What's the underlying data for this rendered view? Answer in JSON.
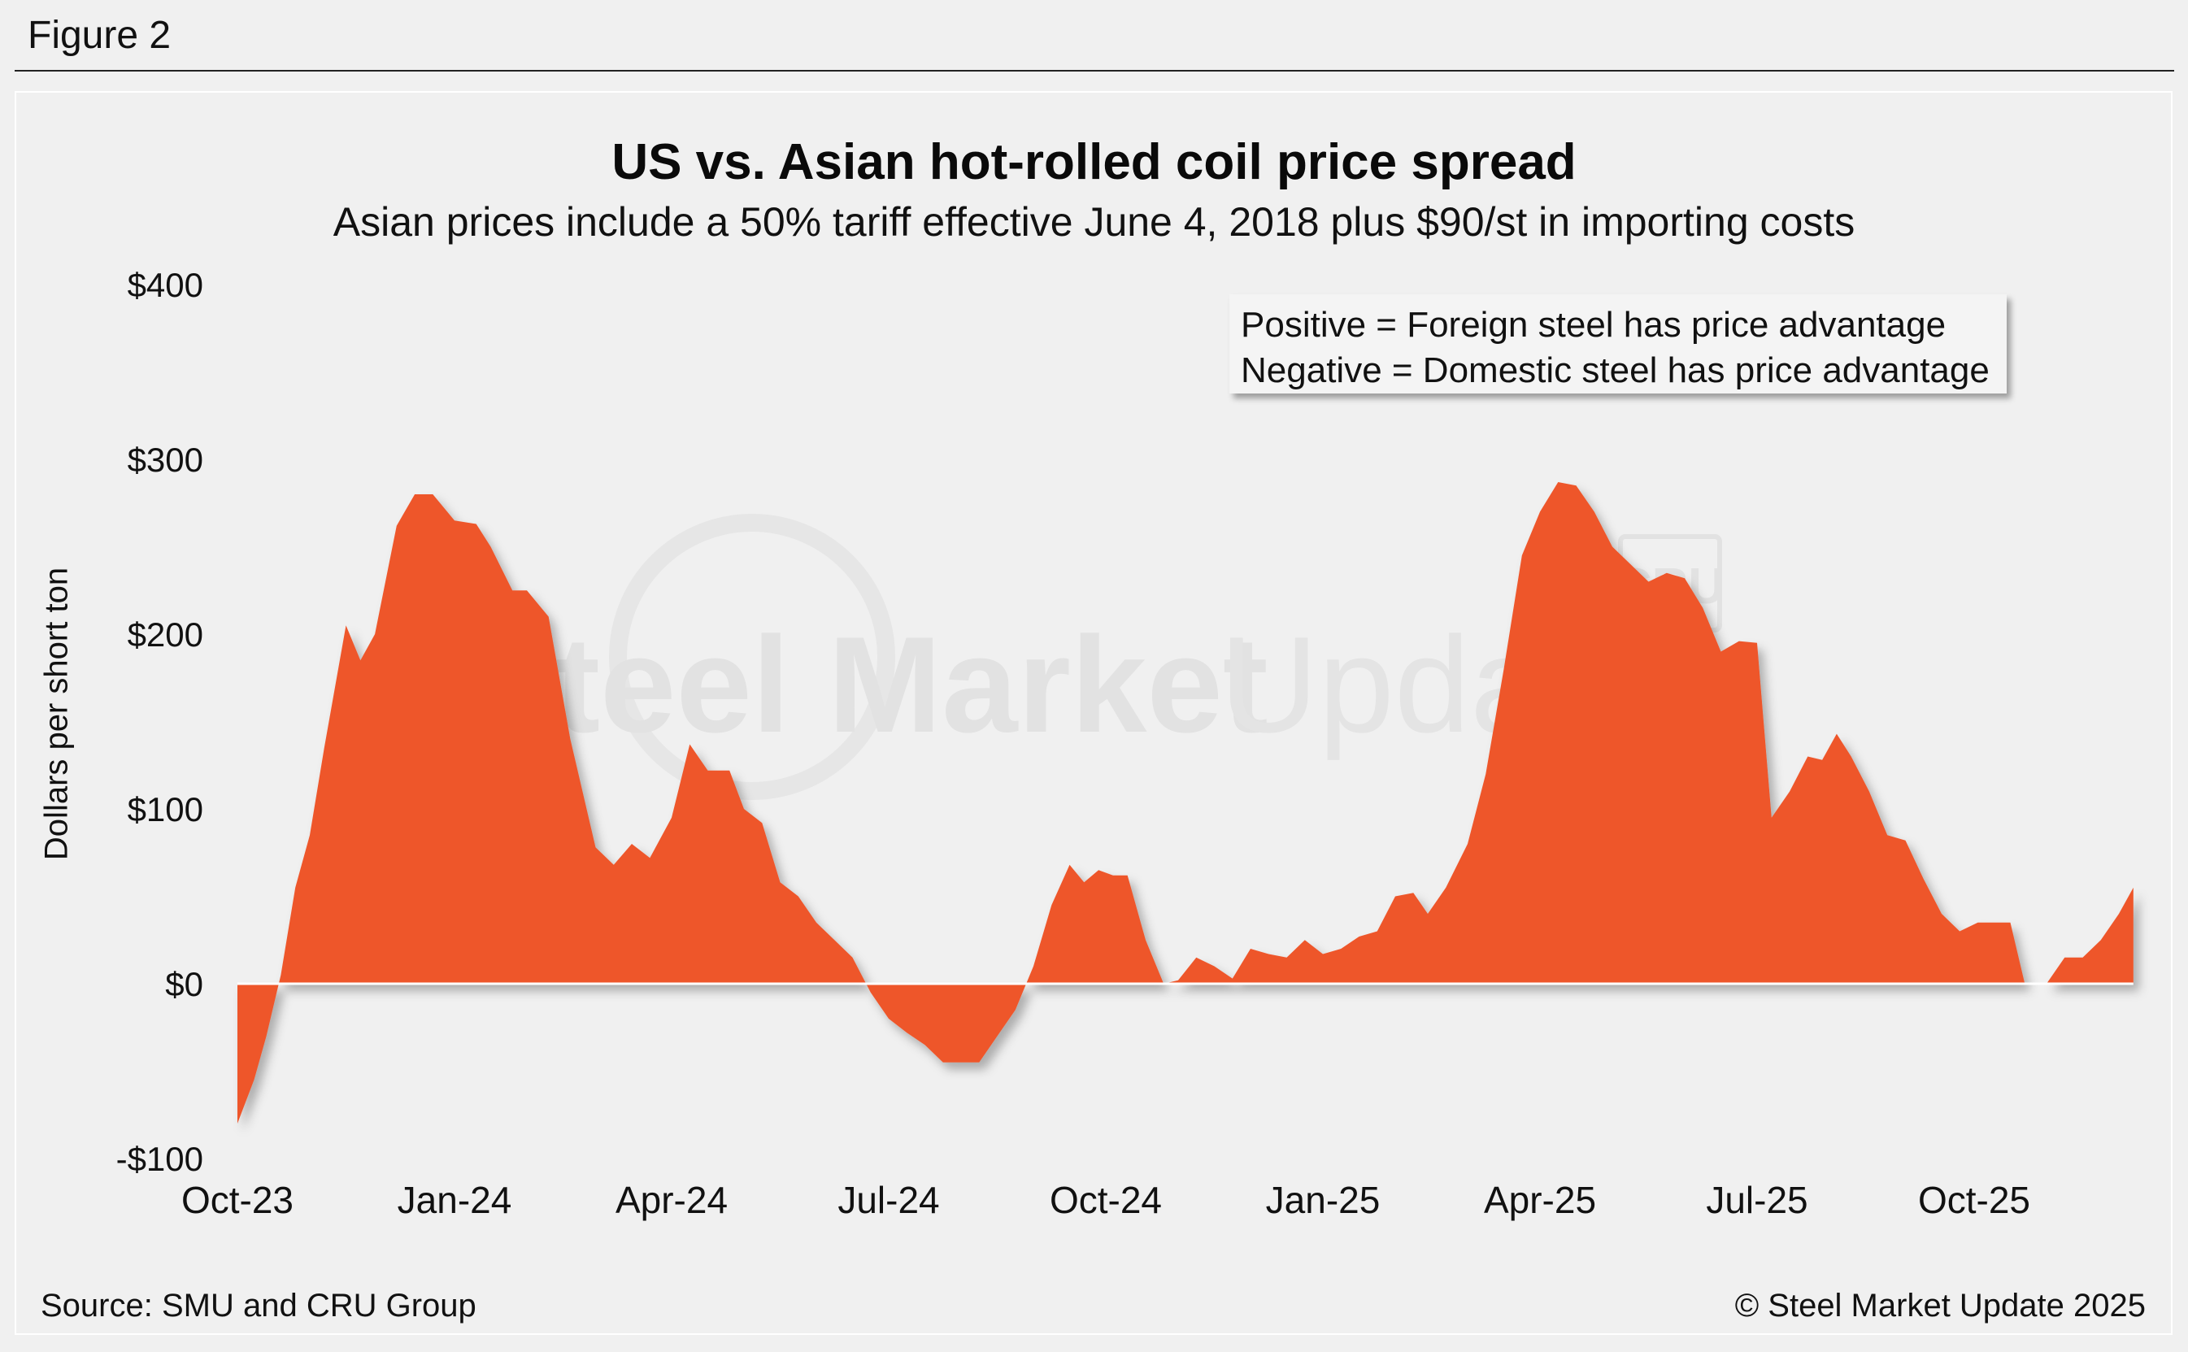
{
  "figure_label": "Figure 2",
  "source": "Source: SMU and CRU Group",
  "copyright": "© Steel Market Update 2025",
  "watermark": {
    "main": "Steel Market",
    "light": "Update",
    "badge": "CRU"
  },
  "legend": {
    "positive": "Positive = Foreign steel has price advantage",
    "negative": "Negative = Domestic steel has price advantage"
  },
  "colors": {
    "area": "#ee562b",
    "zero_line": "#ffffff",
    "background": "#f0f0f0"
  },
  "chart_data": {
    "type": "area",
    "title": "US vs. Asian hot-rolled coil price spread",
    "subtitle": "Asian prices include a 50% tariff effective June 4, 2018 plus $90/st in importing costs",
    "xlabel": "",
    "ylabel": "Dollars per short ton",
    "ylim": [
      -100,
      400
    ],
    "yticks": [
      {
        "value": 400,
        "label": "$400"
      },
      {
        "value": 300,
        "label": "$300"
      },
      {
        "value": 200,
        "label": "$200"
      },
      {
        "value": 100,
        "label": "$100"
      },
      {
        "value": 0,
        "label": "$0"
      },
      {
        "value": -100,
        "label": "-$100"
      }
    ],
    "xlim": [
      0,
      25.1
    ],
    "xticks": [
      {
        "value": 0,
        "label": "Oct-23"
      },
      {
        "value": 3,
        "label": "Jan-24"
      },
      {
        "value": 6,
        "label": "Apr-24"
      },
      {
        "value": 9,
        "label": "Jul-24"
      },
      {
        "value": 12,
        "label": "Oct-24"
      },
      {
        "value": 15,
        "label": "Jan-25"
      },
      {
        "value": 18,
        "label": "Apr-25"
      },
      {
        "value": 21,
        "label": "Jul-25"
      },
      {
        "value": 24,
        "label": "Oct-25"
      }
    ],
    "series": [
      {
        "name": "US vs. Asian HRC price spread",
        "points": [
          [
            0.0,
            -80
          ],
          [
            0.23,
            -55
          ],
          [
            0.4,
            -30
          ],
          [
            0.6,
            5
          ],
          [
            0.8,
            55
          ],
          [
            1.0,
            85
          ],
          [
            1.2,
            135
          ],
          [
            1.5,
            205
          ],
          [
            1.7,
            185
          ],
          [
            1.9,
            200
          ],
          [
            2.2,
            262
          ],
          [
            2.45,
            280
          ],
          [
            2.7,
            280
          ],
          [
            3.0,
            265
          ],
          [
            3.3,
            263
          ],
          [
            3.5,
            250
          ],
          [
            3.8,
            225
          ],
          [
            4.0,
            225
          ],
          [
            4.3,
            210
          ],
          [
            4.6,
            140
          ],
          [
            4.95,
            78
          ],
          [
            5.2,
            68
          ],
          [
            5.45,
            80
          ],
          [
            5.7,
            72
          ],
          [
            6.0,
            95
          ],
          [
            6.25,
            137
          ],
          [
            6.5,
            122
          ],
          [
            6.8,
            122
          ],
          [
            7.0,
            100
          ],
          [
            7.25,
            92
          ],
          [
            7.5,
            58
          ],
          [
            7.75,
            50
          ],
          [
            8.0,
            35
          ],
          [
            8.25,
            25
          ],
          [
            8.5,
            15
          ],
          [
            8.75,
            -5
          ],
          [
            9.0,
            -20
          ],
          [
            9.25,
            -28
          ],
          [
            9.5,
            -35
          ],
          [
            9.75,
            -45
          ],
          [
            10.0,
            -45
          ],
          [
            10.25,
            -45
          ],
          [
            10.5,
            -30
          ],
          [
            10.75,
            -15
          ],
          [
            11.0,
            10
          ],
          [
            11.25,
            45
          ],
          [
            11.5,
            68
          ],
          [
            11.7,
            58
          ],
          [
            11.9,
            65
          ],
          [
            12.1,
            62
          ],
          [
            12.3,
            62
          ],
          [
            12.55,
            25
          ],
          [
            12.8,
            0
          ],
          [
            13.0,
            2
          ],
          [
            13.25,
            15
          ],
          [
            13.5,
            10
          ],
          [
            13.75,
            3
          ],
          [
            14.0,
            20
          ],
          [
            14.25,
            17
          ],
          [
            14.5,
            15
          ],
          [
            14.75,
            25
          ],
          [
            15.0,
            17
          ],
          [
            15.25,
            20
          ],
          [
            15.5,
            27
          ],
          [
            15.75,
            30
          ],
          [
            16.0,
            50
          ],
          [
            16.25,
            52
          ],
          [
            16.45,
            40
          ],
          [
            16.7,
            55
          ],
          [
            17.0,
            80
          ],
          [
            17.25,
            120
          ],
          [
            17.5,
            180
          ],
          [
            17.75,
            245
          ],
          [
            18.0,
            270
          ],
          [
            18.25,
            287
          ],
          [
            18.5,
            285
          ],
          [
            18.75,
            270
          ],
          [
            19.0,
            250
          ],
          [
            19.25,
            240
          ],
          [
            19.5,
            230
          ],
          [
            19.75,
            235
          ],
          [
            20.0,
            232
          ],
          [
            20.25,
            215
          ],
          [
            20.5,
            190
          ],
          [
            20.75,
            196
          ],
          [
            21.0,
            195
          ],
          [
            21.2,
            95
          ],
          [
            21.45,
            110
          ],
          [
            21.7,
            130
          ],
          [
            21.9,
            128
          ],
          [
            22.1,
            143
          ],
          [
            22.3,
            130
          ],
          [
            22.55,
            110
          ],
          [
            22.8,
            85
          ],
          [
            23.05,
            82
          ],
          [
            23.3,
            60
          ],
          [
            23.55,
            40
          ],
          [
            23.8,
            30
          ],
          [
            24.05,
            35
          ],
          [
            24.3,
            35
          ],
          [
            24.5,
            35
          ],
          [
            24.7,
            0
          ],
          [
            25.0,
            0
          ],
          [
            25.25,
            15
          ],
          [
            25.5,
            15
          ],
          [
            25.75,
            25
          ],
          [
            26.0,
            40
          ],
          [
            26.2,
            55
          ]
        ]
      }
    ]
  }
}
